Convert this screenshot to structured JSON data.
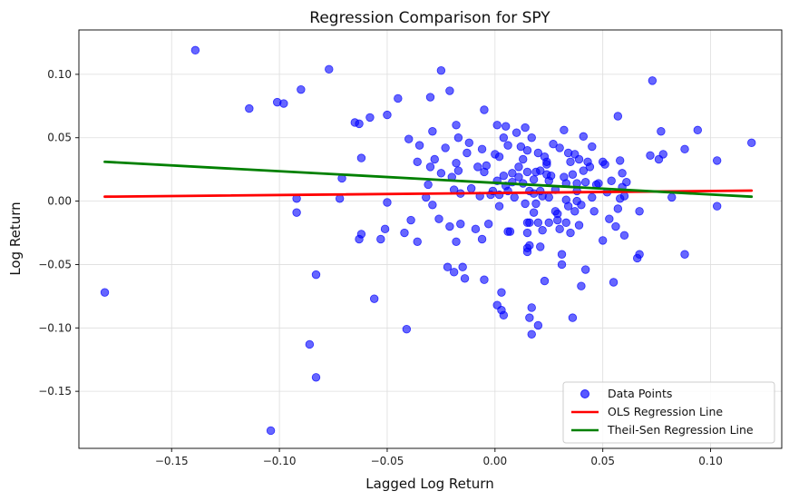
{
  "chart_data": {
    "type": "scatter",
    "title": "Regression Comparison for SPY",
    "xlabel": "Lagged Log Return",
    "ylabel": "Log Return",
    "xlim": [
      -0.193,
      0.133
    ],
    "ylim": [
      -0.195,
      0.135
    ],
    "xticks": [
      -0.15,
      -0.1,
      -0.05,
      0.0,
      0.05,
      0.1
    ],
    "xtick_labels": [
      "−0.15",
      "−0.10",
      "−0.05",
      "0.00",
      "0.05",
      "0.10"
    ],
    "yticks": [
      0.1,
      0.05,
      0.0,
      -0.05,
      -0.1,
      -0.15
    ],
    "ytick_labels": [
      "0.10",
      "0.05",
      "0.00",
      "−0.05",
      "−0.10",
      "−0.15"
    ],
    "grid": true,
    "legend_position": "bottom-right",
    "series": [
      {
        "name": "Data Points",
        "kind": "scatter",
        "color": "#0000ff",
        "points": [
          [
            -0.181,
            -0.072
          ],
          [
            -0.139,
            0.119
          ],
          [
            -0.114,
            0.073
          ],
          [
            -0.101,
            0.078
          ],
          [
            -0.098,
            0.077
          ],
          [
            -0.092,
            0.002
          ],
          [
            -0.092,
            -0.009
          ],
          [
            -0.09,
            0.088
          ],
          [
            -0.086,
            -0.113
          ],
          [
            -0.083,
            -0.058
          ],
          [
            -0.083,
            -0.139
          ],
          [
            -0.077,
            0.104
          ],
          [
            -0.072,
            0.002
          ],
          [
            -0.071,
            0.018
          ],
          [
            -0.065,
            0.062
          ],
          [
            -0.063,
            0.061
          ],
          [
            -0.063,
            -0.03
          ],
          [
            -0.062,
            -0.026
          ],
          [
            -0.062,
            0.034
          ],
          [
            -0.058,
            0.066
          ],
          [
            -0.056,
            -0.077
          ],
          [
            -0.053,
            -0.03
          ],
          [
            -0.051,
            -0.022
          ],
          [
            -0.05,
            0.068
          ],
          [
            -0.05,
            -0.001
          ],
          [
            -0.045,
            0.081
          ],
          [
            -0.042,
            -0.025
          ],
          [
            -0.041,
            -0.101
          ],
          [
            -0.04,
            0.049
          ],
          [
            -0.039,
            -0.015
          ],
          [
            -0.036,
            0.031
          ],
          [
            -0.036,
            -0.032
          ],
          [
            -0.035,
            0.044
          ],
          [
            -0.032,
            0.003
          ],
          [
            -0.031,
            0.013
          ],
          [
            -0.03,
            0.082
          ],
          [
            -0.03,
            0.027
          ],
          [
            -0.029,
            0.055
          ],
          [
            -0.029,
            -0.003
          ],
          [
            -0.028,
            0.033
          ],
          [
            -0.026,
            -0.014
          ],
          [
            -0.025,
            0.103
          ],
          [
            -0.025,
            0.022
          ],
          [
            -0.023,
            0.042
          ],
          [
            -0.022,
            -0.052
          ],
          [
            -0.021,
            0.087
          ],
          [
            -0.021,
            -0.02
          ],
          [
            -0.02,
            0.019
          ],
          [
            -0.019,
            -0.056
          ],
          [
            -0.019,
            0.009
          ],
          [
            -0.018,
            0.06
          ],
          [
            -0.018,
            0.03
          ],
          [
            -0.018,
            -0.032
          ],
          [
            -0.017,
            0.05
          ],
          [
            -0.017,
            0.024
          ],
          [
            -0.016,
            0.006
          ],
          [
            -0.016,
            -0.018
          ],
          [
            -0.015,
            -0.052
          ],
          [
            -0.014,
            -0.061
          ],
          [
            -0.013,
            0.038
          ],
          [
            -0.012,
            0.046
          ],
          [
            -0.011,
            0.01
          ],
          [
            -0.009,
            -0.022
          ],
          [
            -0.008,
            0.027
          ],
          [
            -0.007,
            0.004
          ],
          [
            -0.006,
            0.041
          ],
          [
            -0.006,
            -0.03
          ],
          [
            -0.005,
            -0.062
          ],
          [
            -0.005,
            0.023
          ],
          [
            -0.005,
            0.072
          ],
          [
            -0.004,
            0.028
          ],
          [
            -0.003,
            -0.018
          ],
          [
            -0.002,
            0.005
          ],
          [
            -0.001,
            0.008
          ],
          [
            0.0,
            0.037
          ],
          [
            0.001,
            0.06
          ],
          [
            0.001,
            0.016
          ],
          [
            0.001,
            -0.082
          ],
          [
            0.002,
            -0.004
          ],
          [
            0.002,
            0.035
          ],
          [
            0.002,
            0.005
          ],
          [
            0.003,
            -0.072
          ],
          [
            0.003,
            -0.086
          ],
          [
            0.004,
            0.02
          ],
          [
            0.004,
            0.05
          ],
          [
            0.004,
            -0.09
          ],
          [
            0.005,
            0.059
          ],
          [
            0.005,
            0.012
          ],
          [
            0.006,
            0.008
          ],
          [
            0.006,
            -0.024
          ],
          [
            0.006,
            0.044
          ],
          [
            0.007,
            -0.024
          ],
          [
            0.008,
            0.022
          ],
          [
            0.008,
            0.015
          ],
          [
            0.009,
            0.003
          ],
          [
            0.01,
            0.054
          ],
          [
            0.011,
            0.027
          ],
          [
            0.011,
            0.019
          ],
          [
            0.012,
            0.043
          ],
          [
            0.013,
            0.033
          ],
          [
            0.013,
            0.014
          ],
          [
            0.014,
            -0.002
          ],
          [
            0.014,
            0.058
          ],
          [
            0.015,
            0.023
          ],
          [
            0.015,
            0.04
          ],
          [
            0.015,
            -0.017
          ],
          [
            0.015,
            -0.037
          ],
          [
            0.015,
            -0.025
          ],
          [
            0.015,
            -0.04
          ],
          [
            0.016,
            -0.035
          ],
          [
            0.016,
            0.008
          ],
          [
            0.016,
            -0.092
          ],
          [
            0.016,
            -0.017
          ],
          [
            0.017,
            -0.105
          ],
          [
            0.017,
            -0.084
          ],
          [
            0.017,
            0.05
          ],
          [
            0.018,
            -0.009
          ],
          [
            0.018,
            0.006
          ],
          [
            0.018,
            0.017
          ],
          [
            0.019,
            -0.002
          ],
          [
            0.019,
            0.023
          ],
          [
            0.02,
            0.038
          ],
          [
            0.02,
            -0.098
          ],
          [
            0.02,
            -0.017
          ],
          [
            0.021,
            0.024
          ],
          [
            0.021,
            0.008
          ],
          [
            0.021,
            -0.036
          ],
          [
            0.022,
            0.004
          ],
          [
            0.022,
            -0.023
          ],
          [
            0.023,
            0.035
          ],
          [
            0.023,
            -0.063
          ],
          [
            0.024,
            0.031
          ],
          [
            0.024,
            0.029
          ],
          [
            0.024,
            0.021
          ],
          [
            0.025,
            0.016
          ],
          [
            0.025,
            0.003
          ],
          [
            0.025,
            -0.017
          ],
          [
            0.026,
            0.02
          ],
          [
            0.027,
            0.045
          ],
          [
            0.028,
            -0.008
          ],
          [
            0.028,
            0.009
          ],
          [
            0.029,
            -0.01
          ],
          [
            0.029,
            -0.015
          ],
          [
            0.03,
            0.042
          ],
          [
            0.03,
            -0.022
          ],
          [
            0.031,
            -0.05
          ],
          [
            0.031,
            -0.042
          ],
          [
            0.032,
            0.019
          ],
          [
            0.032,
            0.056
          ],
          [
            0.033,
            0.014
          ],
          [
            0.033,
            -0.017
          ],
          [
            0.033,
            0.001
          ],
          [
            0.034,
            0.038
          ],
          [
            0.034,
            -0.004
          ],
          [
            0.035,
            0.031
          ],
          [
            0.035,
            -0.025
          ],
          [
            0.036,
            0.021
          ],
          [
            0.036,
            -0.092
          ],
          [
            0.037,
            0.037
          ],
          [
            0.037,
            -0.008
          ],
          [
            0.038,
            0.0
          ],
          [
            0.038,
            0.014
          ],
          [
            0.038,
            0.008
          ],
          [
            0.039,
            -0.019
          ],
          [
            0.039,
            0.033
          ],
          [
            0.04,
            -0.067
          ],
          [
            0.04,
            -0.003
          ],
          [
            0.041,
            0.024
          ],
          [
            0.041,
            0.051
          ],
          [
            0.042,
            -0.054
          ],
          [
            0.042,
            0.015
          ],
          [
            0.043,
            0.031
          ],
          [
            0.044,
            0.027
          ],
          [
            0.045,
            0.003
          ],
          [
            0.045,
            0.043
          ],
          [
            0.046,
            -0.008
          ],
          [
            0.047,
            0.013
          ],
          [
            0.048,
            0.014
          ],
          [
            0.05,
            0.031
          ],
          [
            0.05,
            -0.031
          ],
          [
            0.051,
            0.029
          ],
          [
            0.052,
            0.007
          ],
          [
            0.053,
            -0.014
          ],
          [
            0.054,
            0.016
          ],
          [
            0.055,
            -0.064
          ],
          [
            0.056,
            -0.02
          ],
          [
            0.057,
            0.067
          ],
          [
            0.057,
            -0.006
          ],
          [
            0.058,
            0.002
          ],
          [
            0.058,
            0.032
          ],
          [
            0.059,
            0.022
          ],
          [
            0.059,
            0.011
          ],
          [
            0.06,
            -0.027
          ],
          [
            0.06,
            0.004
          ],
          [
            0.061,
            0.015
          ],
          [
            0.066,
            -0.045
          ],
          [
            0.067,
            -0.042
          ],
          [
            0.067,
            -0.008
          ],
          [
            0.072,
            0.036
          ],
          [
            0.073,
            0.095
          ],
          [
            0.076,
            0.033
          ],
          [
            0.077,
            0.055
          ],
          [
            0.078,
            0.037
          ],
          [
            0.082,
            0.003
          ],
          [
            0.088,
            -0.042
          ],
          [
            0.088,
            0.041
          ],
          [
            0.094,
            0.056
          ],
          [
            0.103,
            0.032
          ],
          [
            0.103,
            -0.004
          ],
          [
            0.119,
            0.046
          ],
          [
            -0.104,
            -0.181
          ]
        ]
      },
      {
        "name": "OLS Regression Line",
        "kind": "line",
        "color": "#ff0000",
        "x": [
          -0.181,
          0.119
        ],
        "y": [
          0.0035,
          0.0083
        ]
      },
      {
        "name": "Theil-Sen Regression Line",
        "kind": "line",
        "color": "#008000",
        "x": [
          -0.181,
          0.119
        ],
        "y": [
          0.031,
          0.0035
        ]
      }
    ]
  }
}
